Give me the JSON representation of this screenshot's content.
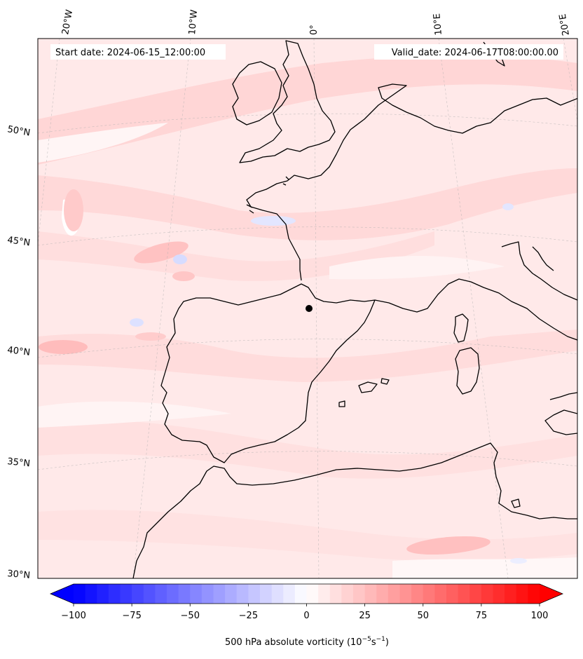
{
  "header": {
    "start_date": "Start date: 2024-06-15_12:00:00",
    "valid_date": "Valid_date: 2024-06-17T08:00:00.00"
  },
  "map": {
    "longitude_labels": [
      "20°W",
      "10°W",
      "0°",
      "10°E",
      "20°E"
    ],
    "latitude_labels": [
      "50°N",
      "45°N",
      "40°N",
      "35°N",
      "30°N"
    ],
    "field_background_color": "#ffe9e9",
    "coastline_color": "#000000",
    "gridline_color": "#b0b0b0"
  },
  "colorbar": {
    "min": -100,
    "max": 100,
    "step": 5,
    "ticks": [
      "−100",
      "−75",
      "−50",
      "−25",
      "0",
      "25",
      "50",
      "75",
      "100"
    ],
    "label_prefix": "500 hPa absolute vorticity (10",
    "label_exp1": "−5",
    "label_mid": "s",
    "label_exp2": "−1",
    "label_suffix": ")",
    "negative_color": "#0000ff",
    "positive_color": "#ff0000"
  }
}
